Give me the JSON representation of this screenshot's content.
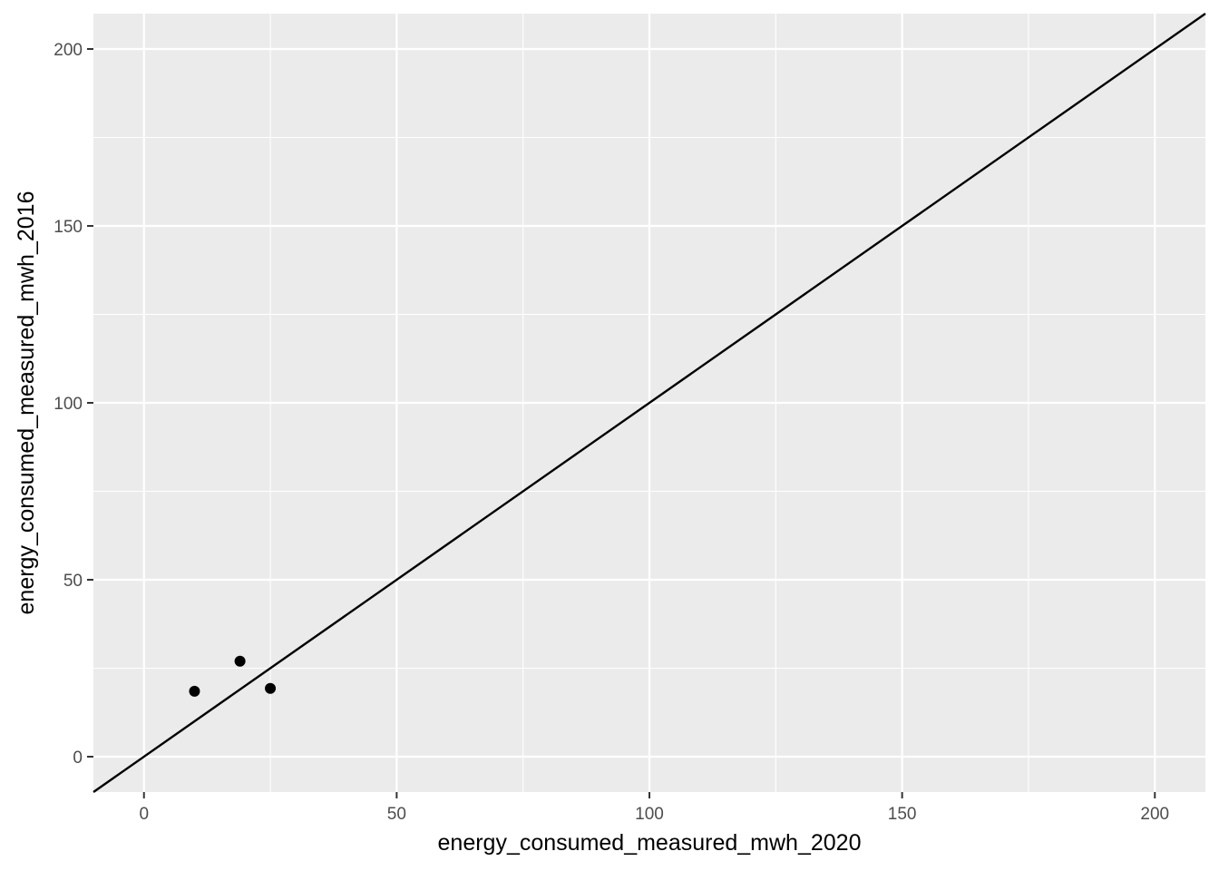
{
  "chart_data": {
    "type": "scatter",
    "title": "",
    "xlabel": "energy_consumed_measured_mwh_2020",
    "ylabel": "energy_consumed_measured_mwh_2016",
    "xlim": [
      -10,
      210
    ],
    "ylim": [
      -10,
      210
    ],
    "x_ticks": [
      0,
      50,
      100,
      150,
      200
    ],
    "y_ticks": [
      0,
      50,
      100,
      150,
      200
    ],
    "x_tick_labels": [
      "0",
      "50",
      "100",
      "150",
      "200"
    ],
    "y_tick_labels": [
      "0",
      "50",
      "100",
      "150",
      "200"
    ],
    "grid": true,
    "legend": "none",
    "points": [
      {
        "x": 10,
        "y": 18.5
      },
      {
        "x": 19,
        "y": 27
      },
      {
        "x": 25,
        "y": 19.3
      }
    ],
    "reference_line": {
      "type": "identity",
      "slope": 1,
      "intercept": 0,
      "color": "#000000"
    },
    "colors": {
      "panel": "#ebebeb",
      "grid": "#ffffff",
      "points": "#000000"
    }
  }
}
